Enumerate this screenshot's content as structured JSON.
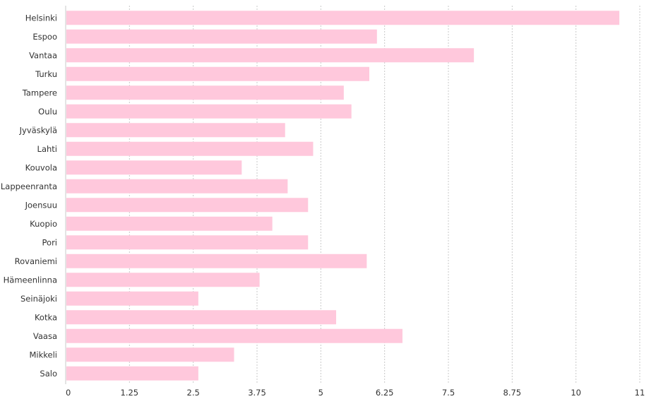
{
  "chart_data": {
    "type": "bar",
    "orientation": "horizontal",
    "title": "",
    "xlabel": "",
    "ylabel": "",
    "xlim": [
      0,
      11.25
    ],
    "grid": true,
    "bar_color": "#ffc8dc",
    "ticks": [
      "0",
      "1.25",
      "2.5",
      "3.75",
      "5",
      "6.25",
      "7.5",
      "8.75",
      "10",
      "11"
    ],
    "tick_values": [
      0,
      1.25,
      2.5,
      3.75,
      5,
      6.25,
      7.5,
      8.75,
      10,
      11.25
    ],
    "categories": [
      "Helsinki",
      "Espoo",
      "Vantaa",
      "Turku",
      "Tampere",
      "Oulu",
      "Jyväskylä",
      "Lahti",
      "Kouvola",
      "Lappeenranta",
      "Joensuu",
      "Kuopio",
      "Pori",
      "Rovaniemi",
      "Hämeenlinna",
      "Seinäjoki",
      "Kotka",
      "Vaasa",
      "Mikkeli",
      "Salo"
    ],
    "values": [
      10.85,
      6.1,
      8.0,
      5.95,
      5.45,
      5.6,
      4.3,
      4.85,
      3.45,
      4.35,
      4.75,
      4.05,
      4.75,
      5.9,
      3.8,
      2.6,
      5.3,
      6.6,
      3.3,
      2.6
    ]
  }
}
